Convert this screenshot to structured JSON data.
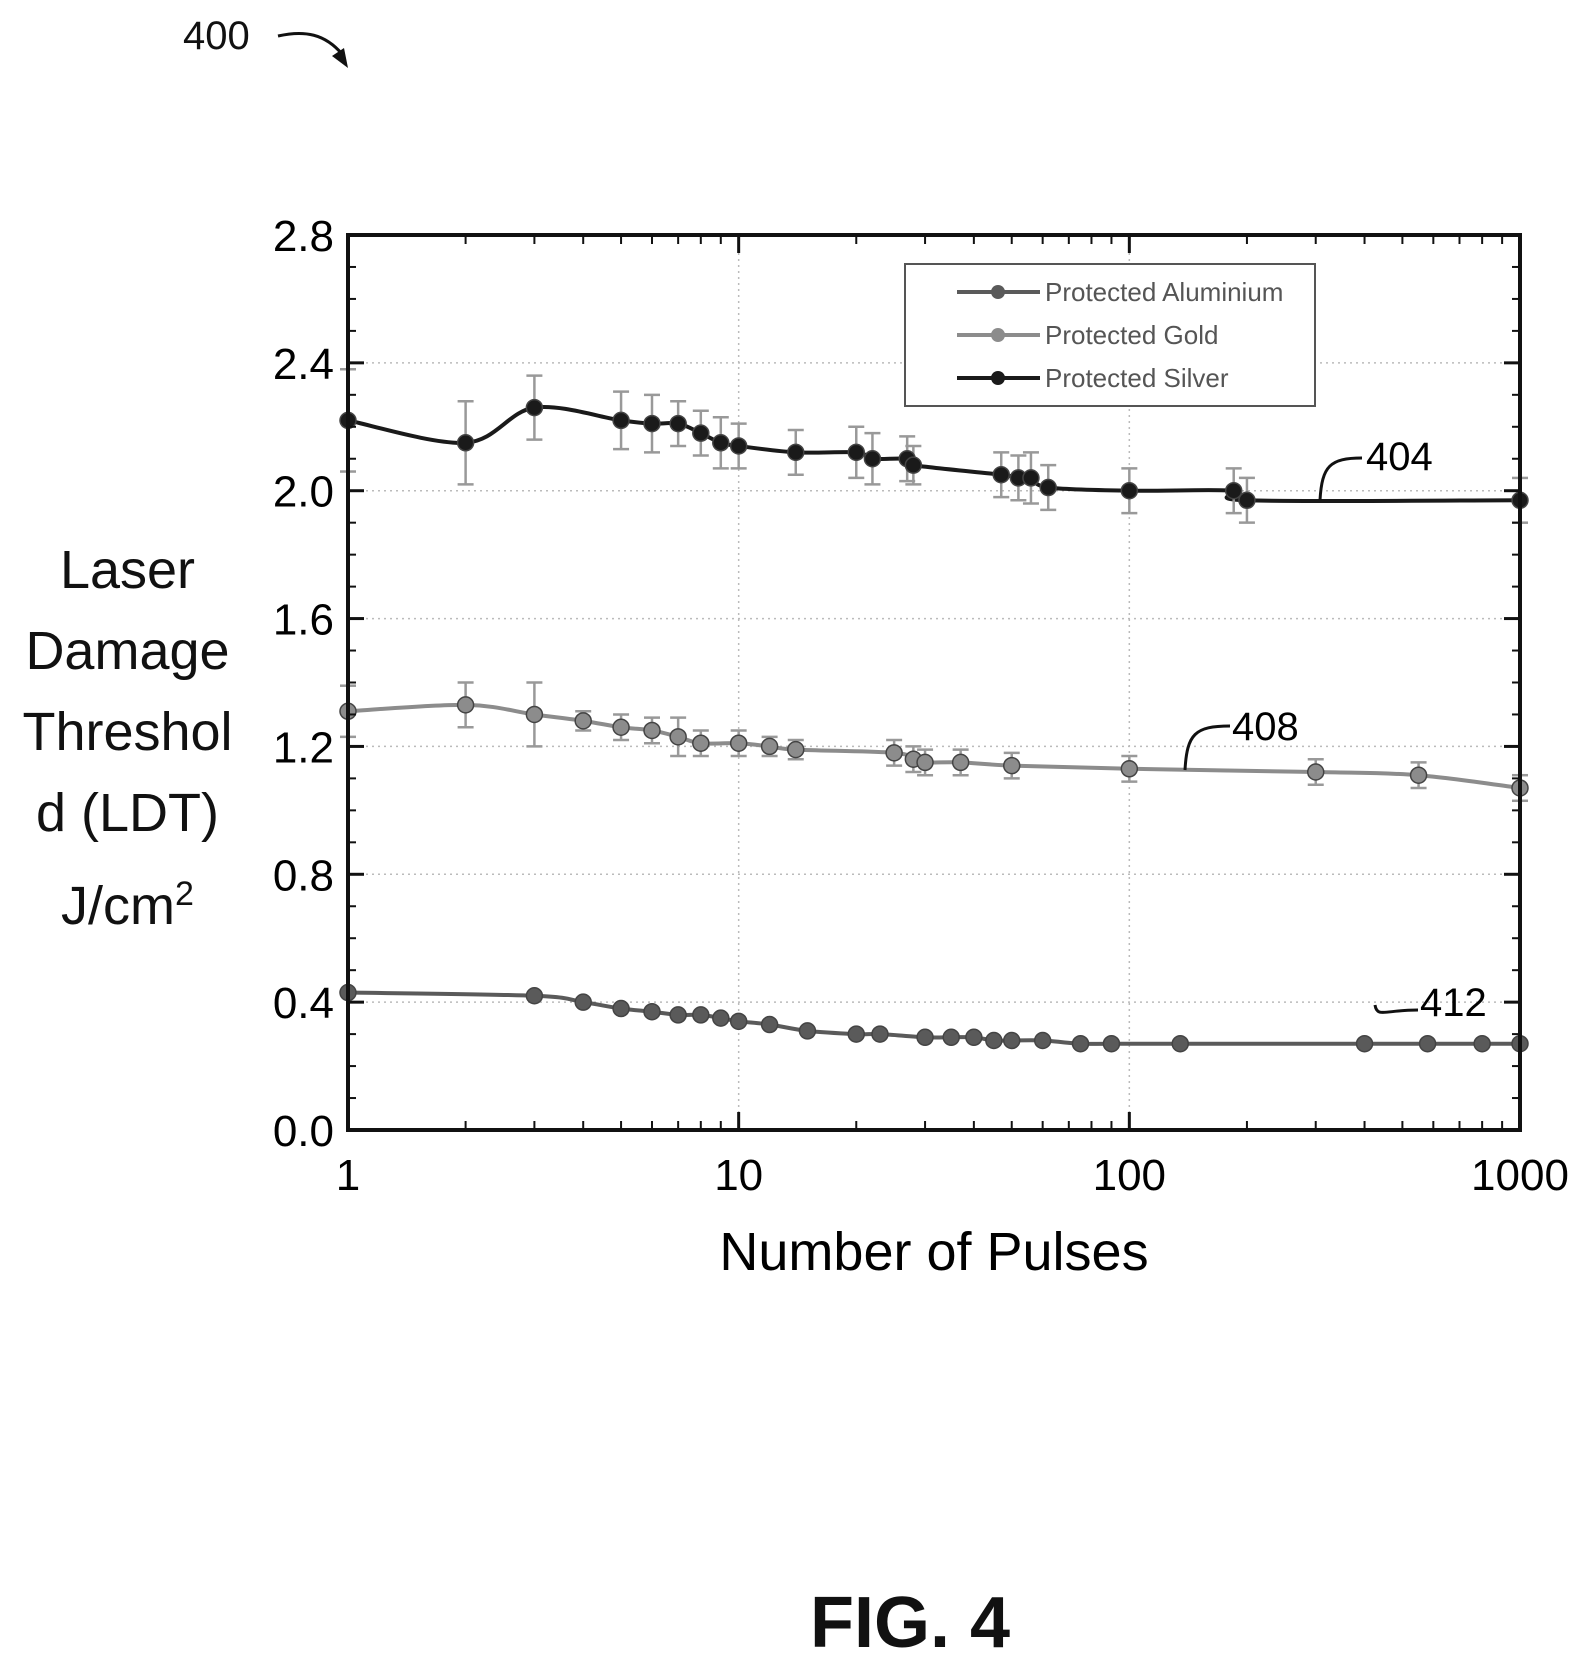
{
  "figure": {
    "ref_label": "400",
    "caption": "FIG. 4"
  },
  "chart_data": {
    "type": "line",
    "title": "",
    "xlabel": "Number of Pulses",
    "ylabel_lines": [
      "Laser",
      "Damage",
      "Threshol",
      "d (LDT)",
      "J/cm"
    ],
    "ylabel_superscript": "2",
    "x_scale": "log",
    "xlim": [
      1,
      1000
    ],
    "ylim": [
      0.0,
      2.8
    ],
    "x_ticks": [
      1,
      10,
      100,
      1000
    ],
    "x_tick_labels": [
      "1",
      "10",
      "100",
      "1000"
    ],
    "y_ticks": [
      0.0,
      0.4,
      0.8,
      1.2,
      1.6,
      2.0,
      2.4,
      2.8
    ],
    "y_tick_labels": [
      "0.0",
      "0.4",
      "0.8",
      "1.2",
      "1.6",
      "2.0",
      "2.4",
      "2.8"
    ],
    "grid": true,
    "legend_position": "top-right",
    "series": [
      {
        "name": "Protected Aluminium",
        "ref_label": "412",
        "color": "#5a5a5a",
        "x": [
          1,
          3,
          4,
          5,
          6,
          7,
          8,
          9,
          10,
          12,
          15,
          20,
          23,
          30,
          35,
          40,
          45,
          50,
          60,
          75,
          90,
          135,
          400,
          580,
          800,
          1000
        ],
        "y": [
          0.43,
          0.42,
          0.4,
          0.38,
          0.37,
          0.36,
          0.36,
          0.35,
          0.34,
          0.33,
          0.31,
          0.3,
          0.3,
          0.29,
          0.29,
          0.29,
          0.28,
          0.28,
          0.28,
          0.27,
          0.27,
          0.27,
          0.27,
          0.27,
          0.27,
          0.27
        ]
      },
      {
        "name": "Protected Gold",
        "ref_label": "408",
        "color": "#8c8c8c",
        "x": [
          1,
          2,
          3,
          4,
          5,
          6,
          7,
          8,
          10,
          12,
          14,
          25,
          28,
          30,
          37,
          50,
          100,
          300,
          550,
          1000
        ],
        "y": [
          1.31,
          1.33,
          1.3,
          1.28,
          1.26,
          1.25,
          1.23,
          1.21,
          1.21,
          1.2,
          1.19,
          1.18,
          1.16,
          1.15,
          1.15,
          1.14,
          1.13,
          1.12,
          1.11,
          1.07
        ],
        "err": [
          0.08,
          0.07,
          0.1,
          0.03,
          0.04,
          0.04,
          0.06,
          0.04,
          0.04,
          0.03,
          0.03,
          0.04,
          0.04,
          0.04,
          0.04,
          0.04,
          0.04,
          0.04,
          0.04,
          0.04
        ]
      },
      {
        "name": "Protected Silver",
        "ref_label": "404",
        "color": "#1a1a1a",
        "x": [
          1,
          2,
          3,
          5,
          6,
          7,
          8,
          9,
          10,
          14,
          20,
          22,
          27,
          28,
          47,
          52,
          56,
          62,
          100,
          185,
          200,
          1000
        ],
        "y": [
          2.22,
          2.15,
          2.26,
          2.22,
          2.21,
          2.21,
          2.18,
          2.15,
          2.14,
          2.12,
          2.12,
          2.1,
          2.1,
          2.08,
          2.05,
          2.04,
          2.04,
          2.01,
          2.0,
          2.0,
          1.97,
          1.97
        ],
        "err": [
          0.16,
          0.13,
          0.1,
          0.09,
          0.09,
          0.07,
          0.07,
          0.08,
          0.07,
          0.07,
          0.08,
          0.08,
          0.07,
          0.06,
          0.07,
          0.07,
          0.08,
          0.07,
          0.07,
          0.07,
          0.07,
          0.07
        ]
      }
    ]
  }
}
